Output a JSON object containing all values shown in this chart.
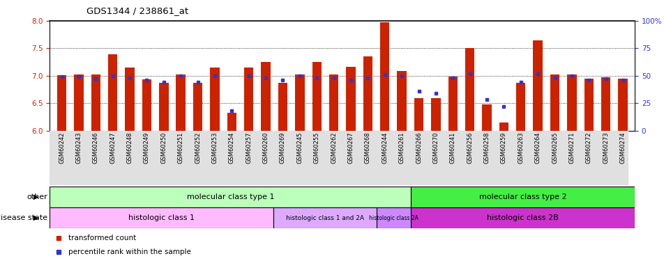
{
  "title": "GDS1344 / 238861_at",
  "samples": [
    "GSM60242",
    "GSM60243",
    "GSM60246",
    "GSM60247",
    "GSM60248",
    "GSM60249",
    "GSM60250",
    "GSM60251",
    "GSM60252",
    "GSM60253",
    "GSM60254",
    "GSM60257",
    "GSM60260",
    "GSM60269",
    "GSM60245",
    "GSM60255",
    "GSM60262",
    "GSM60267",
    "GSM60268",
    "GSM60244",
    "GSM60261",
    "GSM60266",
    "GSM60270",
    "GSM60241",
    "GSM60256",
    "GSM60258",
    "GSM60259",
    "GSM60263",
    "GSM60264",
    "GSM60265",
    "GSM60271",
    "GSM60272",
    "GSM60273",
    "GSM60274"
  ],
  "transformed_count": [
    7.01,
    7.02,
    7.02,
    7.39,
    7.15,
    6.93,
    6.87,
    7.02,
    6.87,
    7.15,
    6.32,
    7.15,
    7.25,
    6.87,
    7.02,
    7.25,
    7.02,
    7.16,
    7.35,
    7.98,
    7.08,
    6.59,
    6.59,
    6.98,
    7.5,
    6.48,
    6.15,
    6.87,
    7.65,
    7.02,
    7.02,
    6.95,
    6.97,
    6.95
  ],
  "percentile_rank": [
    49,
    49,
    47,
    50,
    48,
    46,
    44,
    50,
    44,
    50,
    18,
    50,
    48,
    46,
    50,
    48,
    48,
    46,
    48,
    51,
    50,
    36,
    34,
    48,
    52,
    28,
    22,
    44,
    52,
    48,
    50,
    46,
    47,
    46
  ],
  "ylim_left": [
    6.0,
    8.0
  ],
  "ylim_right": [
    0,
    100
  ],
  "yticks_left": [
    6.0,
    6.5,
    7.0,
    7.5,
    8.0
  ],
  "yticks_right": [
    0,
    25,
    50,
    75,
    100
  ],
  "bar_color": "#cc2200",
  "marker_color": "#3333cc",
  "bar_width": 0.55,
  "groups": [
    {
      "label": "molecular class type 1",
      "start": 0,
      "end": 21,
      "color": "#bbffbb"
    },
    {
      "label": "molecular class type 2",
      "start": 21,
      "end": 34,
      "color": "#44ee44"
    }
  ],
  "disease_groups": [
    {
      "label": "histologic class 1",
      "start": 0,
      "end": 13,
      "color": "#ffbbff"
    },
    {
      "label": "histologic class 1 and 2A",
      "start": 13,
      "end": 19,
      "color": "#ddaaff"
    },
    {
      "label": "histologic class 2A",
      "start": 19,
      "end": 21,
      "color": "#cc88ff"
    },
    {
      "label": "histologic class 2B",
      "start": 21,
      "end": 34,
      "color": "#cc33cc"
    }
  ]
}
